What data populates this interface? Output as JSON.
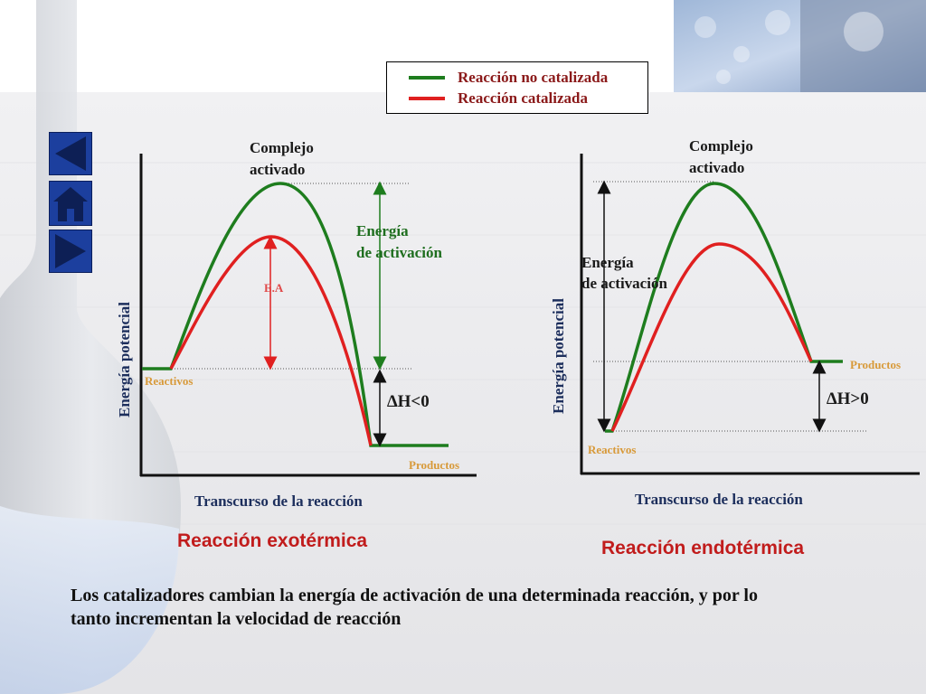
{
  "legend": {
    "uncatalyzed": {
      "label": "Reacción no catalizada",
      "color": "#1e7d1e"
    },
    "catalyzed": {
      "label": "Reacción  catalizada",
      "color": "#e02020"
    }
  },
  "exo": {
    "complex_label_line1": "Complejo",
    "complex_label_line2": "activado",
    "activation_label_line1": "Energía",
    "activation_label_line2": "de activación",
    "ea_label": "E.A",
    "delta_h": "∆H<0",
    "reactants": "Reactivos",
    "products": "Productos",
    "ylabel": "Energía potencial",
    "xlabel": "Transcurso de la reacción",
    "title": "Reacción exotérmica"
  },
  "endo": {
    "complex_label_line1": "Complejo",
    "complex_label_line2": "activado",
    "activation_label_line1": "Energía",
    "activation_label_line2": "de activación",
    "delta_h": "∆H>0",
    "reactants": "Reactivos",
    "products": "Productos",
    "ylabel": "Energía potencial",
    "xlabel": "Transcurso de la reacción",
    "title": "Reacción endotérmica"
  },
  "caption": {
    "line1": "Los catalizadores cambian la energía de activación de una determinada reacción, y por lo",
    "line2": "tanto incrementan la velocidad de reacción"
  },
  "nav": {
    "prev_icon": "triangle-left-icon",
    "home_icon": "home-icon",
    "next_icon": "triangle-right-icon"
  }
}
